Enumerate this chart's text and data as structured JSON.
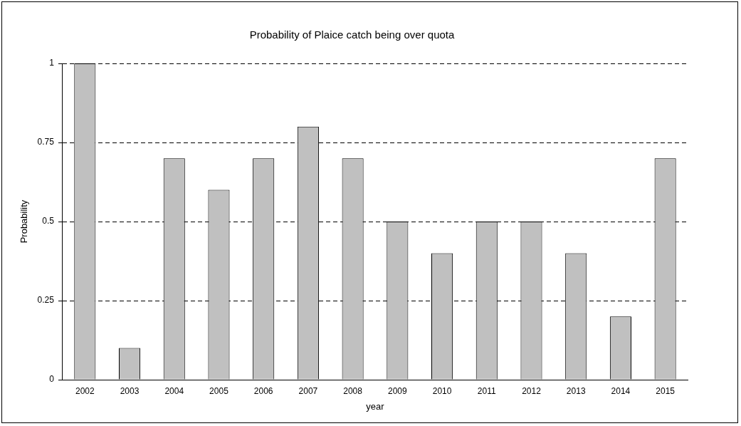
{
  "chart_data": {
    "type": "bar",
    "title": "Probability of Plaice catch being over quota",
    "xlabel": "year",
    "ylabel": "Probability",
    "categories": [
      "2002",
      "2003",
      "2004",
      "2005",
      "2006",
      "2007",
      "2008",
      "2009",
      "2010",
      "2011",
      "2012",
      "2013",
      "2014",
      "2015"
    ],
    "values": [
      1,
      0.1,
      0.7,
      0.6,
      0.7,
      0.8,
      0.7,
      0.5,
      0.4,
      0.5,
      0.5,
      0.4,
      0.2,
      0.7
    ],
    "color": "#c0c0c0",
    "ylim": [
      0,
      1
    ],
    "yticks": [
      0,
      0.25,
      0.5,
      0.75,
      1
    ],
    "grid": "y",
    "legend": false
  }
}
